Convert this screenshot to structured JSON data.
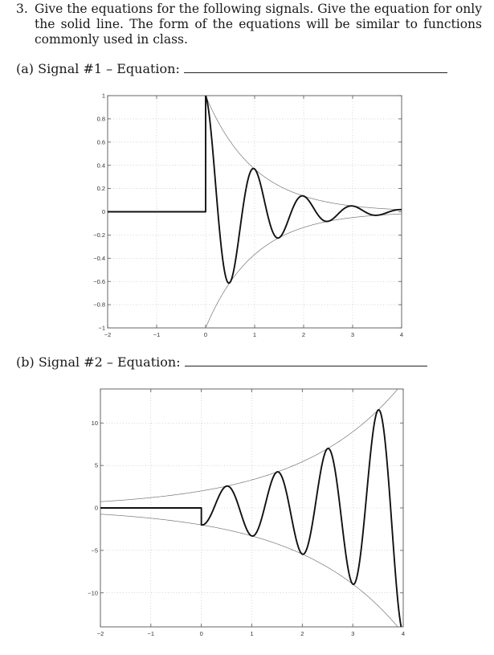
{
  "question": {
    "number": "3.",
    "text": "Give the equations for the following signals. Give the equation for only the solid line. The form of the equations will be similar to functions commonly used in class."
  },
  "parts": [
    {
      "label": "(a) Signal #1 – Equation:",
      "answer": ""
    },
    {
      "label": "(b) Signal #2 – Equation:",
      "answer": ""
    }
  ],
  "chart_data": [
    {
      "type": "line",
      "title": "Signal #1",
      "xlabel": "",
      "ylabel": "",
      "xlim": [
        -2,
        4
      ],
      "ylim": [
        -1,
        1
      ],
      "xticks": [
        -2,
        -1,
        0,
        1,
        2,
        3,
        4
      ],
      "yticks": [
        -1,
        -0.8,
        -0.6,
        -0.4,
        -0.2,
        0,
        0.2,
        0.4,
        0.6,
        0.8,
        1
      ],
      "grid": true,
      "series": [
        {
          "name": "signal (solid, thick)",
          "expr": "u(t) * e^(-t) * cos(2*pi*t)",
          "amp": 1,
          "rate": -1,
          "freq": 1,
          "phase_sign": 1
        },
        {
          "name": "upper envelope (thin)",
          "expr": "e^(-t), t>=0"
        },
        {
          "name": "lower envelope (thin)",
          "expr": "-e^(-t), t>=0"
        }
      ],
      "key_points": [
        [
          0,
          1
        ],
        [
          0.5,
          -0.61
        ],
        [
          1,
          0.37
        ],
        [
          1.5,
          -0.22
        ],
        [
          2,
          0.14
        ],
        [
          2.5,
          -0.08
        ],
        [
          3,
          0.05
        ],
        [
          3.5,
          -0.03
        ],
        [
          4,
          0.02
        ]
      ]
    },
    {
      "type": "line",
      "title": "Signal #2",
      "xlabel": "",
      "ylabel": "",
      "xlim": [
        -2,
        4
      ],
      "ylim": [
        -14,
        14
      ],
      "xticks": [
        -2,
        -1,
        0,
        1,
        2,
        3,
        4
      ],
      "yticks": [
        -10,
        -5,
        0,
        5,
        10
      ],
      "grid": true,
      "series": [
        {
          "name": "signal (solid, thick)",
          "expr": "-2 * u(t) * e^(0.5t) * cos(2*pi*t)",
          "amp": -2,
          "rate": 0.5,
          "freq": 1,
          "phase_sign": 1
        },
        {
          "name": "upper envelope (thin)",
          "expr": "2 * e^(0.5t)"
        },
        {
          "name": "lower envelope (thin)",
          "expr": "-2 * e^(0.5t)"
        }
      ],
      "key_points": [
        [
          0,
          -2
        ],
        [
          0.5,
          2.57
        ],
        [
          1,
          -3.3
        ],
        [
          1.5,
          4.23
        ],
        [
          2,
          -5.44
        ],
        [
          2.5,
          6.98
        ],
        [
          3,
          -8.96
        ],
        [
          3.5,
          11.5
        ],
        [
          4,
          -14.8
        ]
      ]
    }
  ]
}
